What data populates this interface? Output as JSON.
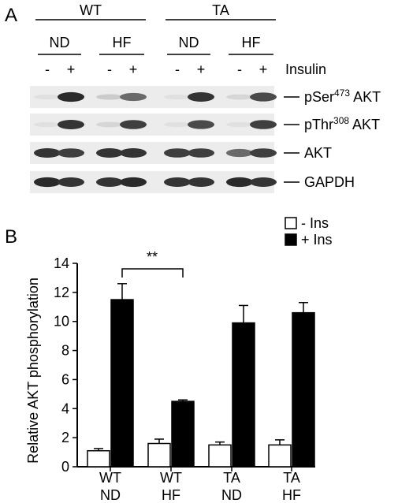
{
  "panel_a": {
    "label": "A",
    "genotypes": [
      {
        "name": "WT",
        "diets": [
          "ND",
          "HF"
        ]
      },
      {
        "name": "TA",
        "diets": [
          "ND",
          "HF"
        ]
      }
    ],
    "insulin_label": "Insulin",
    "insulin_signs": [
      "-",
      "+",
      "-",
      "+",
      "-",
      "+",
      "-",
      "+"
    ],
    "blots": [
      {
        "name": "pSer",
        "sup": "473",
        "suffix": " AKT",
        "intensity": [
          0.05,
          0.9,
          0.15,
          0.6,
          0.05,
          0.85,
          0.1,
          0.75
        ]
      },
      {
        "name": "pThr",
        "sup": "308",
        "suffix": " AKT",
        "intensity": [
          0.05,
          0.85,
          0.1,
          0.8,
          0.05,
          0.75,
          0.05,
          0.8
        ]
      },
      {
        "name": "AKT",
        "sup": "",
        "suffix": "",
        "intensity": [
          0.85,
          0.8,
          0.85,
          0.85,
          0.8,
          0.8,
          0.6,
          0.8
        ]
      },
      {
        "name": "GAPDH",
        "sup": "",
        "suffix": "",
        "intensity": [
          0.9,
          0.85,
          0.85,
          0.9,
          0.85,
          0.85,
          0.9,
          0.85
        ]
      }
    ]
  },
  "panel_b": {
    "label": "B",
    "significance": "**",
    "chart_data": {
      "type": "bar",
      "categories": [
        "WT ND",
        "WT HF",
        "TA ND",
        "TA HF"
      ],
      "category_lines": [
        [
          "WT",
          "ND"
        ],
        [
          "WT",
          "HF"
        ],
        [
          "TA",
          "ND"
        ],
        [
          "TA",
          "HF"
        ]
      ],
      "series": [
        {
          "name": "- Ins",
          "values": [
            1.1,
            1.6,
            1.5,
            1.5
          ],
          "errors": [
            0.15,
            0.3,
            0.2,
            0.35
          ],
          "color": "#ffffff"
        },
        {
          "name": "+ Ins",
          "values": [
            11.5,
            4.5,
            9.9,
            10.6
          ],
          "errors": [
            1.1,
            0.1,
            1.2,
            0.7
          ],
          "color": "#000000"
        }
      ],
      "ylabel": "Relative AKT phosphorylation",
      "ylim": [
        0,
        14
      ],
      "yticks": [
        0,
        2,
        4,
        6,
        8,
        10,
        12,
        14
      ],
      "legend_position": "top-right",
      "grid": false
    }
  }
}
